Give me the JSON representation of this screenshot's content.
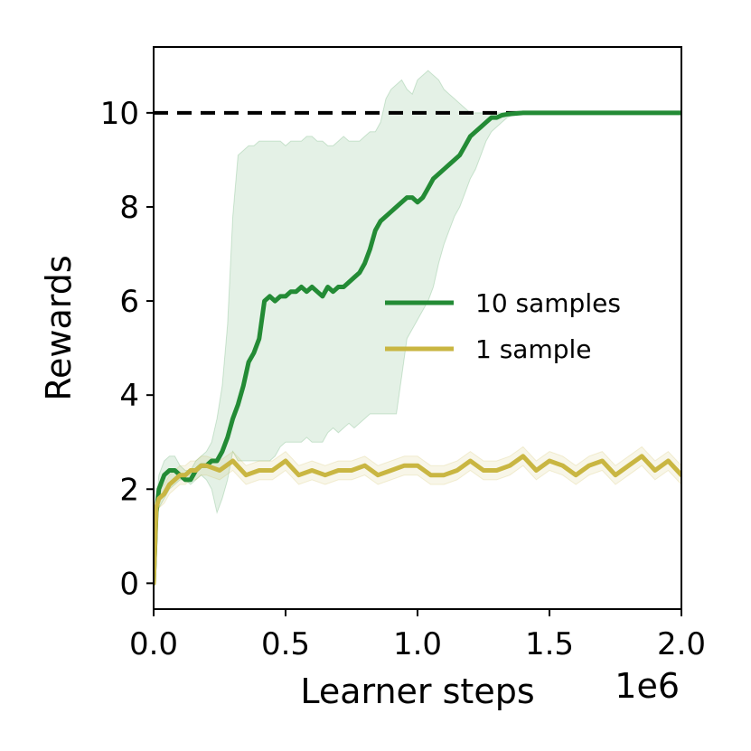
{
  "chart_data": {
    "type": "line",
    "xlabel": "Learner steps",
    "ylabel": "Rewards",
    "x_multiplier_label": "1e6",
    "xlim": [
      0,
      2000000
    ],
    "ylim": [
      -0.55,
      11.4
    ],
    "x_ticks": [
      0,
      500000,
      1000000,
      1500000,
      2000000
    ],
    "x_tick_labels": [
      "0.0",
      "0.5",
      "1.0",
      "1.5",
      "2.0"
    ],
    "y_ticks": [
      0,
      2,
      4,
      6,
      8,
      10
    ],
    "y_tick_labels": [
      "0",
      "2",
      "4",
      "6",
      "8",
      "10"
    ],
    "grid": false,
    "legend_position": "center-right",
    "reference_line": {
      "y": 10,
      "style": "dashed",
      "color": "#000000"
    },
    "series": [
      {
        "name": "10 samples",
        "color": "#238b35",
        "band_color": "#238b35",
        "x": [
          0,
          10000,
          20000,
          40000,
          60000,
          80000,
          100000,
          120000,
          140000,
          160000,
          180000,
          200000,
          220000,
          240000,
          260000,
          280000,
          300000,
          320000,
          340000,
          360000,
          380000,
          400000,
          420000,
          440000,
          460000,
          480000,
          500000,
          520000,
          540000,
          560000,
          580000,
          600000,
          620000,
          640000,
          660000,
          680000,
          700000,
          720000,
          740000,
          760000,
          780000,
          800000,
          820000,
          840000,
          860000,
          880000,
          900000,
          920000,
          940000,
          960000,
          980000,
          1000000,
          1020000,
          1040000,
          1060000,
          1080000,
          1100000,
          1120000,
          1140000,
          1160000,
          1180000,
          1200000,
          1220000,
          1240000,
          1260000,
          1280000,
          1300000,
          1320000,
          1340000,
          1360000,
          1380000,
          1400000,
          1450000,
          1500000,
          1600000,
          1700000,
          1800000,
          1900000,
          2000000
        ],
        "y": [
          0,
          1.5,
          2.0,
          2.3,
          2.4,
          2.4,
          2.3,
          2.2,
          2.2,
          2.4,
          2.5,
          2.5,
          2.6,
          2.6,
          2.8,
          3.1,
          3.5,
          3.8,
          4.2,
          4.7,
          4.9,
          5.2,
          6.0,
          6.1,
          6.0,
          6.1,
          6.1,
          6.2,
          6.2,
          6.3,
          6.2,
          6.3,
          6.2,
          6.1,
          6.3,
          6.2,
          6.3,
          6.3,
          6.4,
          6.5,
          6.6,
          6.8,
          7.1,
          7.5,
          7.7,
          7.8,
          7.9,
          8.0,
          8.1,
          8.2,
          8.2,
          8.1,
          8.2,
          8.4,
          8.6,
          8.7,
          8.8,
          8.9,
          9.0,
          9.1,
          9.3,
          9.5,
          9.6,
          9.7,
          9.8,
          9.9,
          9.9,
          9.95,
          9.97,
          9.98,
          9.99,
          10.0,
          10.0,
          10.0,
          10.0,
          10.0,
          10.0,
          10.0,
          10.0
        ],
        "lower": [
          0,
          1.3,
          1.6,
          1.8,
          2.0,
          2.1,
          2.2,
          2.2,
          2.1,
          2.2,
          2.3,
          2.2,
          2.0,
          1.5,
          1.8,
          2.2,
          2.8,
          2.6,
          2.6,
          2.6,
          2.6,
          2.6,
          2.6,
          2.6,
          2.7,
          2.9,
          3.0,
          3.0,
          3.0,
          3.0,
          3.1,
          3.0,
          3.0,
          3.0,
          3.2,
          3.3,
          3.2,
          3.3,
          3.4,
          3.3,
          3.4,
          3.5,
          3.6,
          3.6,
          3.6,
          3.6,
          3.6,
          3.6,
          4.4,
          5.2,
          5.4,
          5.6,
          5.8,
          6.0,
          6.3,
          6.8,
          7.2,
          7.5,
          7.8,
          8.0,
          8.3,
          8.6,
          8.8,
          9.1,
          9.4,
          9.6,
          9.7,
          9.8,
          9.9,
          9.95,
          9.97,
          9.98,
          9.99,
          10.0,
          10.0,
          10.0,
          10.0,
          10.0,
          10.0
        ],
        "upper": [
          0,
          1.7,
          2.3,
          2.6,
          2.7,
          2.7,
          2.5,
          2.4,
          2.4,
          2.6,
          2.7,
          2.8,
          3.0,
          3.5,
          4.2,
          5.5,
          7.8,
          9.1,
          9.2,
          9.3,
          9.3,
          9.4,
          9.4,
          9.4,
          9.4,
          9.4,
          9.3,
          9.4,
          9.4,
          9.4,
          9.5,
          9.5,
          9.4,
          9.4,
          9.3,
          9.3,
          9.4,
          9.5,
          9.4,
          9.4,
          9.4,
          9.5,
          9.6,
          9.6,
          9.8,
          10.3,
          10.5,
          10.6,
          10.7,
          10.5,
          10.4,
          10.7,
          10.8,
          10.9,
          10.8,
          10.7,
          10.5,
          10.4,
          10.3,
          10.2,
          10.1,
          10.0,
          10.0,
          10.0,
          10.0,
          10.0,
          10.0,
          10.0,
          10.0,
          10.0,
          10.0,
          10.0,
          10.0,
          10.0,
          10.0,
          10.0,
          10.0,
          10.0,
          10.0
        ]
      },
      {
        "name": "1 sample",
        "color": "#c9b642",
        "band_color": "#c9b642",
        "x": [
          0,
          10000,
          20000,
          40000,
          60000,
          80000,
          100000,
          120000,
          140000,
          160000,
          180000,
          200000,
          250000,
          300000,
          350000,
          400000,
          450000,
          500000,
          550000,
          600000,
          650000,
          700000,
          750000,
          800000,
          850000,
          900000,
          950000,
          1000000,
          1050000,
          1100000,
          1150000,
          1200000,
          1250000,
          1300000,
          1350000,
          1400000,
          1450000,
          1500000,
          1550000,
          1600000,
          1650000,
          1700000,
          1750000,
          1800000,
          1850000,
          1900000,
          1950000,
          2000000
        ],
        "y": [
          0,
          1.6,
          1.8,
          1.9,
          2.1,
          2.2,
          2.3,
          2.3,
          2.4,
          2.4,
          2.5,
          2.5,
          2.4,
          2.6,
          2.3,
          2.4,
          2.4,
          2.6,
          2.3,
          2.4,
          2.3,
          2.4,
          2.4,
          2.5,
          2.3,
          2.4,
          2.5,
          2.5,
          2.3,
          2.3,
          2.4,
          2.6,
          2.4,
          2.4,
          2.5,
          2.7,
          2.4,
          2.6,
          2.5,
          2.3,
          2.5,
          2.6,
          2.3,
          2.5,
          2.7,
          2.4,
          2.6,
          2.3
        ],
        "lower": [
          0,
          1.4,
          1.6,
          1.7,
          1.9,
          2.0,
          2.1,
          2.1,
          2.2,
          2.2,
          2.3,
          2.3,
          2.2,
          2.4,
          2.1,
          2.2,
          2.2,
          2.4,
          2.1,
          2.2,
          2.1,
          2.2,
          2.2,
          2.3,
          2.1,
          2.2,
          2.3,
          2.3,
          2.1,
          2.1,
          2.2,
          2.4,
          2.2,
          2.2,
          2.3,
          2.5,
          2.2,
          2.4,
          2.3,
          2.1,
          2.3,
          2.4,
          2.1,
          2.3,
          2.5,
          2.2,
          2.4,
          2.1
        ],
        "upper": [
          0,
          1.8,
          2.0,
          2.1,
          2.3,
          2.4,
          2.5,
          2.5,
          2.6,
          2.6,
          2.7,
          2.7,
          2.6,
          2.8,
          2.5,
          2.6,
          2.6,
          2.8,
          2.5,
          2.6,
          2.5,
          2.6,
          2.6,
          2.7,
          2.5,
          2.6,
          2.7,
          2.7,
          2.5,
          2.5,
          2.6,
          2.8,
          2.6,
          2.6,
          2.7,
          2.9,
          2.6,
          2.8,
          2.7,
          2.5,
          2.7,
          2.8,
          2.5,
          2.7,
          2.9,
          2.6,
          2.8,
          2.5
        ]
      }
    ]
  }
}
